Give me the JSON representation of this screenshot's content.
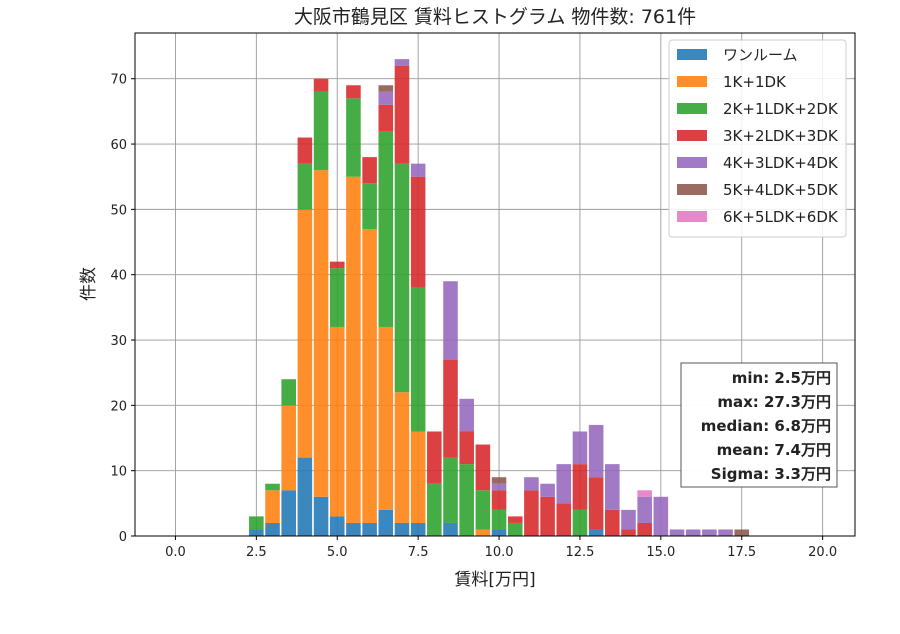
{
  "chart_data": {
    "type": "bar",
    "stacked": true,
    "title": "大阪市鶴見区 賃料ヒストグラム  物件数: 761件",
    "xlabel": "賃料[万円]",
    "ylabel": "件数",
    "xlim": [
      -1.25,
      21.0
    ],
    "ylim": [
      0,
      77
    ],
    "bin_width": 0.5,
    "grid": true,
    "legend_position": "top-right",
    "x_ticks": [
      "0.0",
      "2.5",
      "5.0",
      "7.5",
      "10.0",
      "12.5",
      "15.0",
      "17.5",
      "20.0"
    ],
    "y_ticks": [
      "0",
      "10",
      "20",
      "30",
      "40",
      "50",
      "60",
      "70"
    ],
    "x": [
      2.5,
      3.0,
      3.5,
      4.0,
      4.5,
      5.0,
      5.5,
      6.0,
      6.5,
      7.0,
      7.5,
      8.0,
      8.5,
      9.0,
      9.5,
      10.0,
      10.5,
      11.0,
      11.5,
      12.0,
      12.5,
      13.0,
      13.5,
      14.0,
      14.5,
      15.0,
      15.5,
      16.0,
      16.5,
      17.0,
      17.5
    ],
    "series": [
      {
        "name": "ワンルーム",
        "color": "#1f77b4",
        "values": [
          1,
          2,
          7,
          12,
          6,
          3,
          2,
          2,
          4,
          2,
          2,
          0,
          2,
          0,
          0,
          1,
          0,
          0,
          0,
          0,
          0,
          1,
          0,
          0,
          0,
          0,
          0,
          0,
          0,
          0,
          0
        ]
      },
      {
        "name": "1K+1DK",
        "color": "#ff7f0e",
        "values": [
          0,
          5,
          13,
          38,
          50,
          29,
          53,
          45,
          28,
          20,
          14,
          0,
          0,
          0,
          1,
          0,
          0,
          0,
          0,
          0,
          0,
          0,
          0,
          0,
          0,
          0,
          0,
          0,
          0,
          0,
          0
        ]
      },
      {
        "name": "2K+1LDK+2DK",
        "color": "#2ca02c",
        "values": [
          2,
          1,
          4,
          7,
          12,
          9,
          12,
          7,
          30,
          35,
          22,
          8,
          10,
          11,
          6,
          3,
          2,
          0,
          0,
          0,
          4,
          0,
          0,
          0,
          0,
          0,
          0,
          0,
          0,
          0,
          0
        ]
      },
      {
        "name": "3K+2LDK+3DK",
        "color": "#d62728",
        "values": [
          0,
          0,
          0,
          4,
          2,
          1,
          2,
          4,
          4,
          15,
          17,
          8,
          15,
          5,
          7,
          3,
          1,
          7,
          6,
          5,
          7,
          8,
          4,
          1,
          2,
          0,
          0,
          0,
          0,
          0,
          0
        ]
      },
      {
        "name": "4K+3LDK+4DK",
        "color": "#9467bd",
        "values": [
          0,
          0,
          0,
          0,
          0,
          0,
          0,
          0,
          2,
          1,
          2,
          0,
          12,
          5,
          0,
          1,
          0,
          2,
          2,
          6,
          5,
          8,
          7,
          3,
          4,
          6,
          1,
          1,
          1,
          1,
          0
        ]
      },
      {
        "name": "5K+4LDK+5DK",
        "color": "#8c564b",
        "values": [
          0,
          0,
          0,
          0,
          0,
          0,
          0,
          0,
          1,
          0,
          0,
          0,
          0,
          0,
          0,
          1,
          0,
          0,
          0,
          0,
          0,
          0,
          0,
          0,
          0,
          0,
          0,
          0,
          0,
          0,
          1
        ]
      },
      {
        "name": "6K+5LDK+6DK",
        "color": "#e377c2",
        "values": [
          0,
          0,
          0,
          0,
          0,
          0,
          0,
          0,
          0,
          0,
          0,
          0,
          0,
          0,
          0,
          0,
          0,
          0,
          0,
          0,
          0,
          0,
          0,
          0,
          1,
          0,
          0,
          0,
          0,
          0,
          0
        ]
      }
    ],
    "stats": [
      "min: 2.5万円",
      "max: 27.3万円",
      "median: 6.8万円",
      "mean: 7.4万円",
      "Sigma: 3.3万円"
    ]
  }
}
